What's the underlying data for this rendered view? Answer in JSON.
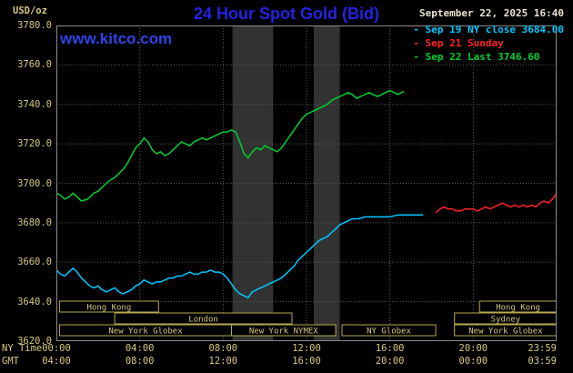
{
  "header": {
    "units": "USD/oz",
    "title": "24 Hour Spot Gold (Bid)",
    "datetime": "September 22, 2025 16:40",
    "watermark": "www.kitco.com"
  },
  "colors": {
    "background": "#000000",
    "title": "#2323e2",
    "watermark": "#2e46e8",
    "datetime": "#e8e3cf",
    "axis_text": "#d6c87e",
    "grid": "#5a5a5a",
    "plot_border": "#8a8a8a",
    "shade": "#323232",
    "session_border": "#b9a94f",
    "session_text": "#d6c87e",
    "cyan": "#00c8ff",
    "red": "#ff2222",
    "green": "#00cf30"
  },
  "legend": [
    {
      "marker": "-",
      "label": "Sep 19 NY close 3684.00",
      "color": "#00c8ff"
    },
    {
      "marker": "-",
      "label": "Sep 21 Sunday",
      "color": "#ff2222"
    },
    {
      "marker": "-",
      "label": "Sep 22 Last 3746.60",
      "color": "#00cf30"
    }
  ],
  "x_axis": {
    "ny_label": "NY Time",
    "gmt_label": "GMT",
    "tick_hours": [
      0,
      4,
      8,
      12,
      16,
      20,
      24
    ],
    "ny_ticks": [
      "00:00",
      "04:00",
      "08:00",
      "12:00",
      "16:00",
      "20:00",
      "23:59"
    ],
    "gmt_ticks": [
      "04:00",
      "08:00",
      "12:00",
      "16:00",
      "20:00",
      "00:00",
      "03:59"
    ]
  },
  "y_axis": {
    "ticks": [
      3780,
      3760,
      3740,
      3720,
      3700,
      3680,
      3660,
      3640,
      3620
    ]
  },
  "sessions": {
    "rows": [
      [
        {
          "label": "Hong Kong",
          "start": 0.15,
          "end": 4.9
        },
        {
          "label": "Hong Kong",
          "start": 20.3,
          "end": 24
        }
      ],
      [
        {
          "label": "London",
          "start": 2.8,
          "end": 11.3
        },
        {
          "label": "Sydney",
          "start": 19.1,
          "end": 24
        }
      ],
      [
        {
          "label": "New York Globex",
          "start": 0.15,
          "end": 8.4
        },
        {
          "label": "New York NYMEX",
          "start": 8.4,
          "end": 13.4
        },
        {
          "label": "NY Globex",
          "start": 13.7,
          "end": 18.2
        },
        {
          "label": "New York Globex",
          "start": 19.1,
          "end": 24
        }
      ]
    ]
  },
  "chart_data": {
    "type": "line",
    "title": "24 Hour Spot Gold (Bid)",
    "ylabel": "USD/oz",
    "xlabel": "NY Time (hours since 00:00)",
    "xlim": [
      0,
      24
    ],
    "ylim": [
      3620,
      3780
    ],
    "grid": true,
    "legend_position": "top-right",
    "shade_bands": [
      {
        "start": 8.45,
        "end": 10.4
      },
      {
        "start": 12.35,
        "end": 13.6
      }
    ],
    "series": [
      {
        "id": "sep19",
        "name": "Sep 19 NY close 3684.00",
        "color": "#00c8ff",
        "points": [
          [
            0,
            3656
          ],
          [
            0.2,
            3654
          ],
          [
            0.4,
            3653
          ],
          [
            0.6,
            3655
          ],
          [
            0.8,
            3657
          ],
          [
            1,
            3655
          ],
          [
            1.2,
            3652
          ],
          [
            1.4,
            3650
          ],
          [
            1.6,
            3648
          ],
          [
            1.8,
            3647
          ],
          [
            2,
            3648
          ],
          [
            2.2,
            3646
          ],
          [
            2.4,
            3645
          ],
          [
            2.6,
            3646
          ],
          [
            2.8,
            3647
          ],
          [
            3,
            3645
          ],
          [
            3.2,
            3644
          ],
          [
            3.4,
            3645
          ],
          [
            3.6,
            3646
          ],
          [
            3.8,
            3648
          ],
          [
            4,
            3649
          ],
          [
            4.2,
            3651
          ],
          [
            4.4,
            3650
          ],
          [
            4.6,
            3649
          ],
          [
            4.8,
            3650
          ],
          [
            5,
            3650
          ],
          [
            5.2,
            3651
          ],
          [
            5.4,
            3652
          ],
          [
            5.6,
            3652
          ],
          [
            5.8,
            3653
          ],
          [
            6,
            3653
          ],
          [
            6.2,
            3654
          ],
          [
            6.4,
            3655
          ],
          [
            6.6,
            3654
          ],
          [
            6.8,
            3654
          ],
          [
            7,
            3655
          ],
          [
            7.2,
            3655
          ],
          [
            7.4,
            3656
          ],
          [
            7.6,
            3655
          ],
          [
            7.8,
            3655
          ],
          [
            8,
            3654
          ],
          [
            8.2,
            3652
          ],
          [
            8.4,
            3649
          ],
          [
            8.6,
            3646
          ],
          [
            8.8,
            3644
          ],
          [
            9,
            3643
          ],
          [
            9.2,
            3642
          ],
          [
            9.4,
            3645
          ],
          [
            9.6,
            3646
          ],
          [
            9.8,
            3647
          ],
          [
            10,
            3648
          ],
          [
            10.2,
            3649
          ],
          [
            10.4,
            3650
          ],
          [
            10.6,
            3651
          ],
          [
            10.8,
            3652
          ],
          [
            11,
            3654
          ],
          [
            11.2,
            3656
          ],
          [
            11.4,
            3658
          ],
          [
            11.6,
            3661
          ],
          [
            11.8,
            3663
          ],
          [
            12,
            3665
          ],
          [
            12.2,
            3667
          ],
          [
            12.4,
            3669
          ],
          [
            12.6,
            3671
          ],
          [
            12.8,
            3672
          ],
          [
            13,
            3673
          ],
          [
            13.2,
            3675
          ],
          [
            13.4,
            3677
          ],
          [
            13.6,
            3679
          ],
          [
            13.8,
            3680
          ],
          [
            14,
            3681
          ],
          [
            14.2,
            3682
          ],
          [
            14.5,
            3682
          ],
          [
            14.8,
            3683
          ],
          [
            15.2,
            3683
          ],
          [
            15.6,
            3683
          ],
          [
            16,
            3683
          ],
          [
            16.4,
            3684
          ],
          [
            16.8,
            3684
          ],
          [
            17.2,
            3684
          ],
          [
            17.6,
            3684
          ]
        ]
      },
      {
        "id": "sep21",
        "name": "Sep 21 Sunday",
        "color": "#ff2222",
        "points": [
          [
            18.2,
            3685
          ],
          [
            18.4,
            3687
          ],
          [
            18.6,
            3688
          ],
          [
            18.8,
            3687
          ],
          [
            19,
            3687
          ],
          [
            19.2,
            3686
          ],
          [
            19.4,
            3686
          ],
          [
            19.6,
            3687
          ],
          [
            19.8,
            3687
          ],
          [
            20,
            3687
          ],
          [
            20.2,
            3686
          ],
          [
            20.4,
            3687
          ],
          [
            20.6,
            3688
          ],
          [
            20.8,
            3687
          ],
          [
            21,
            3688
          ],
          [
            21.2,
            3689
          ],
          [
            21.4,
            3690
          ],
          [
            21.6,
            3689
          ],
          [
            21.8,
            3688
          ],
          [
            22,
            3689
          ],
          [
            22.2,
            3688
          ],
          [
            22.4,
            3689
          ],
          [
            22.6,
            3688
          ],
          [
            22.8,
            3689
          ],
          [
            23,
            3688
          ],
          [
            23.2,
            3690
          ],
          [
            23.4,
            3691
          ],
          [
            23.6,
            3690
          ],
          [
            23.8,
            3692
          ],
          [
            23.95,
            3694
          ],
          [
            24,
            3696
          ]
        ]
      },
      {
        "id": "sep22",
        "name": "Sep 22 Last 3746.60",
        "color": "#00cf30",
        "points": [
          [
            0,
            3695
          ],
          [
            0.2,
            3694
          ],
          [
            0.4,
            3692
          ],
          [
            0.6,
            3693
          ],
          [
            0.8,
            3695
          ],
          [
            1,
            3693
          ],
          [
            1.2,
            3691
          ],
          [
            1.5,
            3692
          ],
          [
            1.8,
            3695
          ],
          [
            2,
            3696
          ],
          [
            2.2,
            3698
          ],
          [
            2.5,
            3701
          ],
          [
            2.8,
            3703
          ],
          [
            3,
            3705
          ],
          [
            3.2,
            3707
          ],
          [
            3.4,
            3710
          ],
          [
            3.6,
            3714
          ],
          [
            3.8,
            3718
          ],
          [
            4,
            3720
          ],
          [
            4.2,
            3723
          ],
          [
            4.4,
            3721
          ],
          [
            4.6,
            3717
          ],
          [
            4.8,
            3715
          ],
          [
            5,
            3716
          ],
          [
            5.2,
            3714
          ],
          [
            5.4,
            3715
          ],
          [
            5.6,
            3717
          ],
          [
            5.8,
            3719
          ],
          [
            6,
            3721
          ],
          [
            6.2,
            3720
          ],
          [
            6.4,
            3719
          ],
          [
            6.6,
            3721
          ],
          [
            6.8,
            3722
          ],
          [
            7,
            3723
          ],
          [
            7.2,
            3722
          ],
          [
            7.4,
            3723
          ],
          [
            7.6,
            3724
          ],
          [
            7.8,
            3725
          ],
          [
            8,
            3726
          ],
          [
            8.2,
            3726
          ],
          [
            8.4,
            3727
          ],
          [
            8.6,
            3726
          ],
          [
            8.8,
            3721
          ],
          [
            9,
            3715
          ],
          [
            9.2,
            3713
          ],
          [
            9.4,
            3716
          ],
          [
            9.6,
            3718
          ],
          [
            9.8,
            3717
          ],
          [
            10,
            3719
          ],
          [
            10.2,
            3718
          ],
          [
            10.4,
            3717
          ],
          [
            10.6,
            3716
          ],
          [
            10.8,
            3718
          ],
          [
            11,
            3721
          ],
          [
            11.2,
            3724
          ],
          [
            11.4,
            3727
          ],
          [
            11.6,
            3730
          ],
          [
            11.8,
            3733
          ],
          [
            12,
            3735
          ],
          [
            12.2,
            3736
          ],
          [
            12.4,
            3737
          ],
          [
            12.6,
            3738
          ],
          [
            12.8,
            3739
          ],
          [
            13,
            3740
          ],
          [
            13.2,
            3742
          ],
          [
            13.4,
            3743
          ],
          [
            13.6,
            3744
          ],
          [
            13.8,
            3745
          ],
          [
            14,
            3746
          ],
          [
            14.2,
            3745
          ],
          [
            14.4,
            3743
          ],
          [
            14.6,
            3744
          ],
          [
            14.8,
            3745
          ],
          [
            15,
            3746
          ],
          [
            15.2,
            3745
          ],
          [
            15.4,
            3744
          ],
          [
            15.6,
            3745
          ],
          [
            15.8,
            3746
          ],
          [
            16,
            3747
          ],
          [
            16.2,
            3746
          ],
          [
            16.4,
            3745
          ],
          [
            16.55,
            3746
          ],
          [
            16.67,
            3746.6
          ]
        ]
      }
    ]
  }
}
